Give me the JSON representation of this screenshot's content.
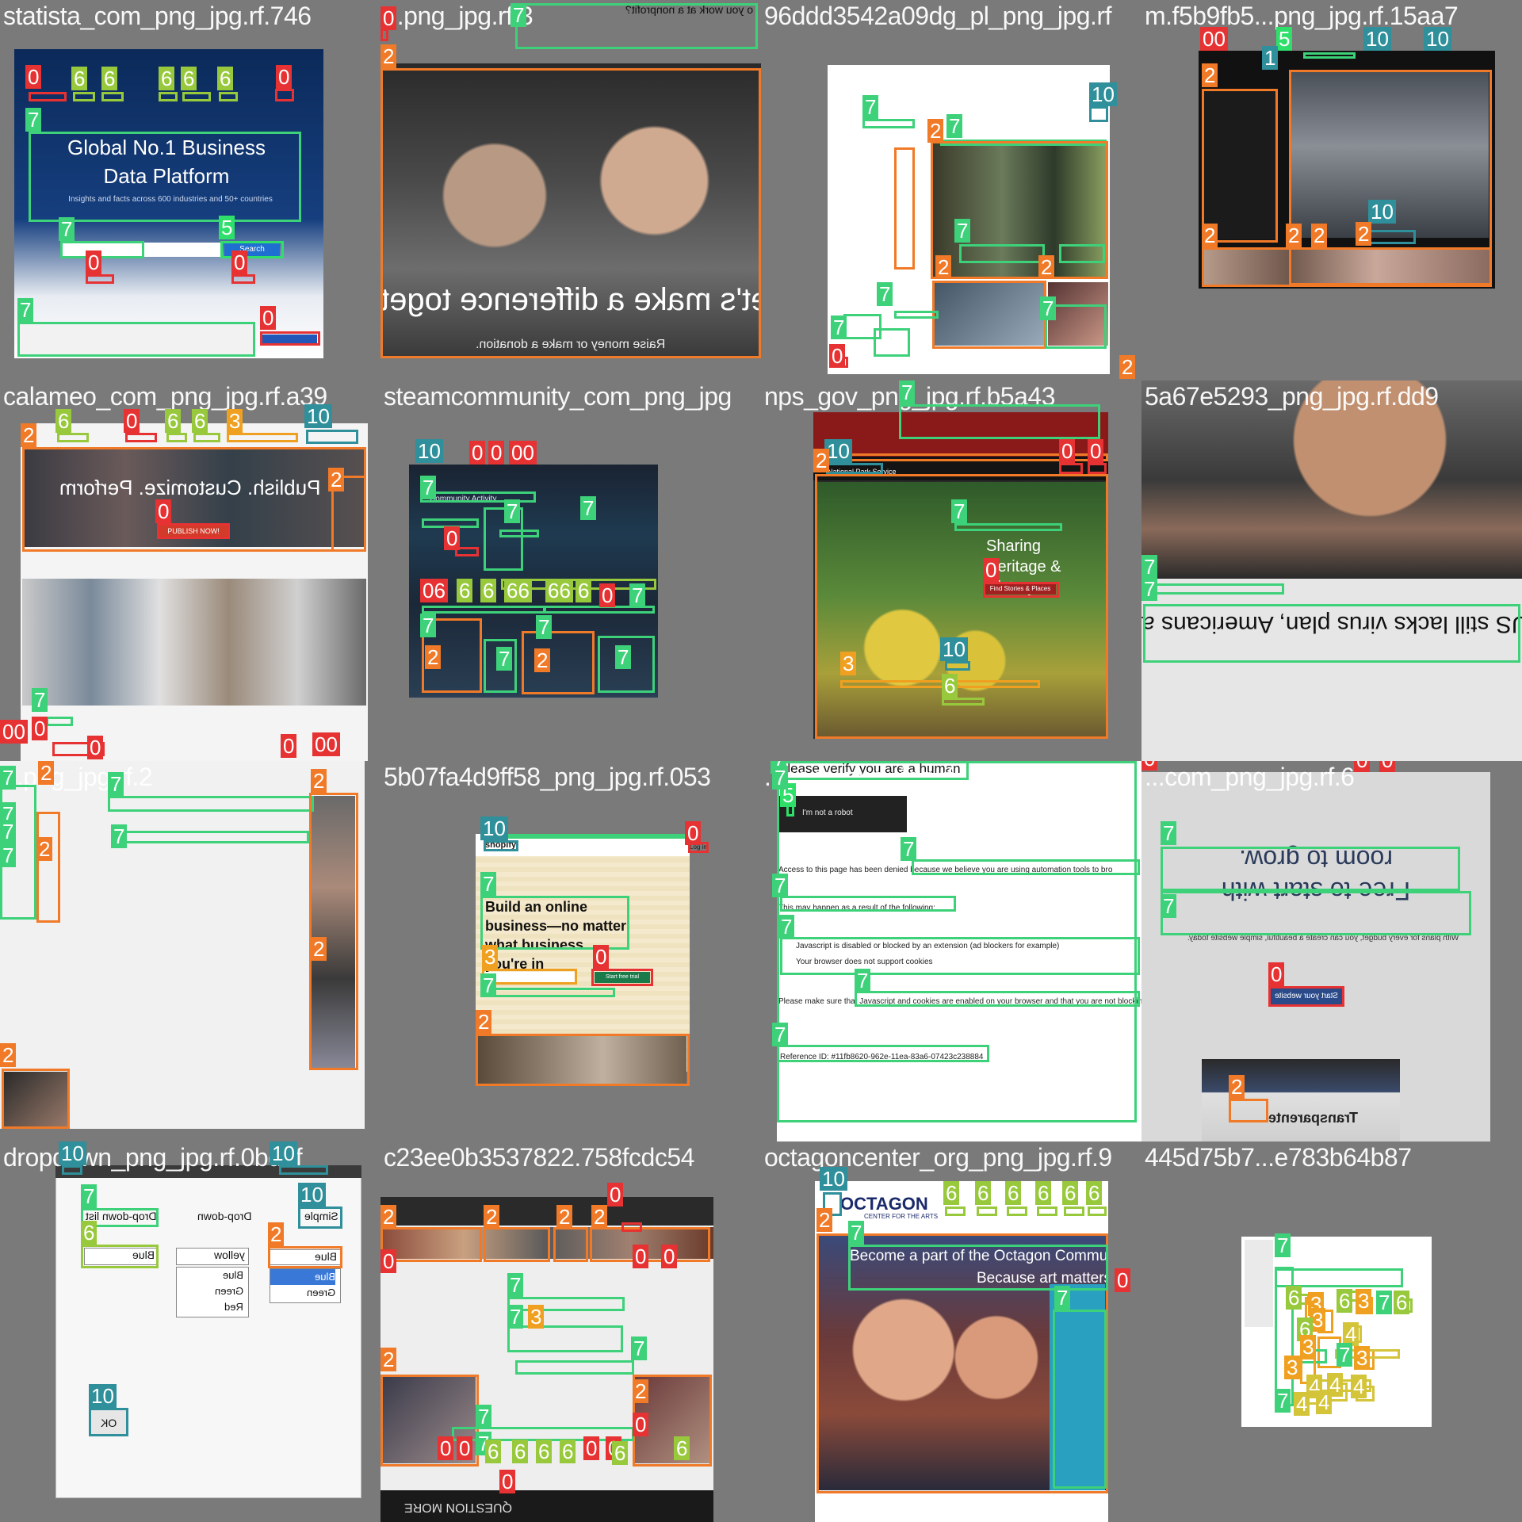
{
  "tiles": [
    {
      "id": "t1",
      "caption": "statista_com_png_jpg.rf.746",
      "title": "Global No.1 Business Data Platform",
      "subtitle": "Insights and facts across 600 industries and 50+ countries",
      "search_label": "Search",
      "labels": [
        "0",
        "6",
        "6",
        "6",
        "6",
        "6",
        "0",
        "7",
        "7",
        "5",
        "0",
        "0",
        "7",
        "0"
      ]
    },
    {
      "id": "t2",
      "caption": "...png_jpg.rf.3",
      "headline": "et's make a difference toget",
      "subline": "Raise money or make a donation.",
      "top_line": "o you work at a nonprofit?",
      "labels": [
        "0",
        "2",
        "7",
        "2"
      ]
    },
    {
      "id": "t3",
      "caption": "96ddd3542a09dg_pl_png_jpg.rf",
      "labels": [
        "10",
        "7",
        "2",
        "7",
        "7",
        "2",
        "7",
        "2",
        "7",
        "7",
        "0",
        "2"
      ]
    },
    {
      "id": "t4",
      "caption": "m.f5b9fb5...png_jpg.rf.15aa7",
      "labels": [
        "00",
        "5",
        "10",
        "10",
        "2",
        "1",
        "2",
        "2",
        "2",
        "10",
        "2"
      ]
    },
    {
      "id": "t5",
      "caption": "calameo_com_png_jpg.rf.a39",
      "hero": "Publish. Customize. Perform",
      "cta": "PUBLISH NOW!",
      "labels": [
        "2",
        "6",
        "0",
        "6",
        "6",
        "3",
        "10",
        "2",
        "0",
        "7",
        "0",
        "00",
        "0",
        "0",
        "00"
      ]
    },
    {
      "id": "t6",
      "caption": "steamcommunity_com_png_jpg",
      "title": "Community Activity",
      "labels": [
        "10",
        "0",
        "0",
        "00",
        "7",
        "7",
        "7",
        "0",
        "06",
        "6",
        "6",
        "66",
        "66",
        "6",
        "0",
        "7",
        "7",
        "2",
        "7",
        "2",
        "7",
        "7"
      ]
    },
    {
      "id": "t7",
      "caption": "nps_gov_png_jpg.rf.b5a43",
      "hero": "Sharing Heritage & History",
      "cta": "Find Stories & Places",
      "org": "National Park Service",
      "labels": [
        "7",
        "10",
        "2",
        "0",
        "0",
        "7",
        "0",
        "10",
        "3",
        "6"
      ]
    },
    {
      "id": "t8",
      "caption": "5a67e5293_png_jpg.rf.dd9",
      "headline": "wer: US still lacks virus plan, Americans a",
      "labels": [
        "7",
        "7"
      ]
    },
    {
      "id": "t9",
      "caption": "...png_jpg.rf.2",
      "labels": [
        "7",
        "2",
        "7",
        "7",
        "2",
        "7",
        "7",
        "2",
        "2",
        "2",
        "7"
      ]
    },
    {
      "id": "t10",
      "caption": "5b07fa4d9ff58_png_jpg.rf.053",
      "brand": "shopify",
      "login": "Log in",
      "headline": "Build an online business—no matter what business you're in",
      "cta": "Start free trial",
      "labels": [
        "10",
        "0",
        "7",
        "3",
        "0",
        "7",
        "2"
      ]
    },
    {
      "id": "t11",
      "caption": "...com_png_jpg.rf",
      "title": "Please verify you are a human",
      "captcha": "I'm not a robot",
      "line1": "Access to this page has been denied because we believe you are using automation tools to bro",
      "line2": "This may happen as a result of the following:",
      "bullet1": "Javascript is disabled or blocked by an extension (ad blockers for example)",
      "bullet2": "Your browser does not support cookies",
      "line3": "Please make sure that Javascript and cookies are enabled on your browser and that you are not blocking",
      "ref": "Reference ID: #11fb8620-962e-11ea-83a6-07423c238884",
      "labels": [
        "7",
        "5",
        "7",
        "7",
        "7",
        "7",
        "7",
        "7"
      ]
    },
    {
      "id": "t12",
      "caption": "...com_png_jpg.rf.6",
      "headline": "Free to start with room to grow.",
      "sub": "With plans for every budget, you can create a beautiful, simple website today.",
      "cta": "Start your website",
      "brand2": "Transparente",
      "labels": [
        "0",
        "0",
        "0",
        "7",
        "7",
        "0",
        "2"
      ]
    },
    {
      "id": "t13",
      "caption": "dropdown_png_jpg.rf.0bdef",
      "labels": [
        "10",
        "10",
        "7",
        "10",
        "6",
        "2",
        "10"
      ],
      "list_items": [
        "Blue",
        "Green",
        "Red"
      ],
      "simple_items": [
        "Blue",
        "Green"
      ],
      "ok": "OK",
      "dd_label": "Drop-down",
      "ddl_label": "Drop-down list",
      "simple_label": "Simple",
      "value1": "Blue",
      "value2": "yellow",
      "value3": "Blue"
    },
    {
      "id": "t14",
      "caption": "c23ee0b3537822.758fcdc54",
      "footer": "QUESTION MORE",
      "labels": [
        "2",
        "2",
        "2",
        "2",
        "0",
        "0",
        "0",
        "0",
        "7",
        "7",
        "3",
        "7",
        "2",
        "7",
        "2",
        "0",
        "7",
        "0",
        "0",
        "6",
        "6",
        "6",
        "6",
        "0",
        "0",
        "6",
        "6",
        "0"
      ]
    },
    {
      "id": "t15",
      "caption": "octagoncenter_org_png_jpg.rf.9",
      "brand": "OCTAGON",
      "brand_sub": "CENTER FOR THE ARTS",
      "headline1": "Become a part of the Octagon Community",
      "headline2": "Because art matters",
      "labels": [
        "10",
        "6",
        "6",
        "6",
        "6",
        "6",
        "6",
        "2",
        "7",
        "7",
        "0"
      ]
    },
    {
      "id": "t16",
      "caption": "445d75b7...e783b64b87",
      "labels": [
        "7",
        "6",
        "3",
        "6",
        "3",
        "3",
        "7",
        "6",
        "6",
        "3",
        "4",
        "7",
        "3",
        "4",
        "4",
        "4",
        "3",
        "7",
        "4",
        "4"
      ]
    }
  ]
}
